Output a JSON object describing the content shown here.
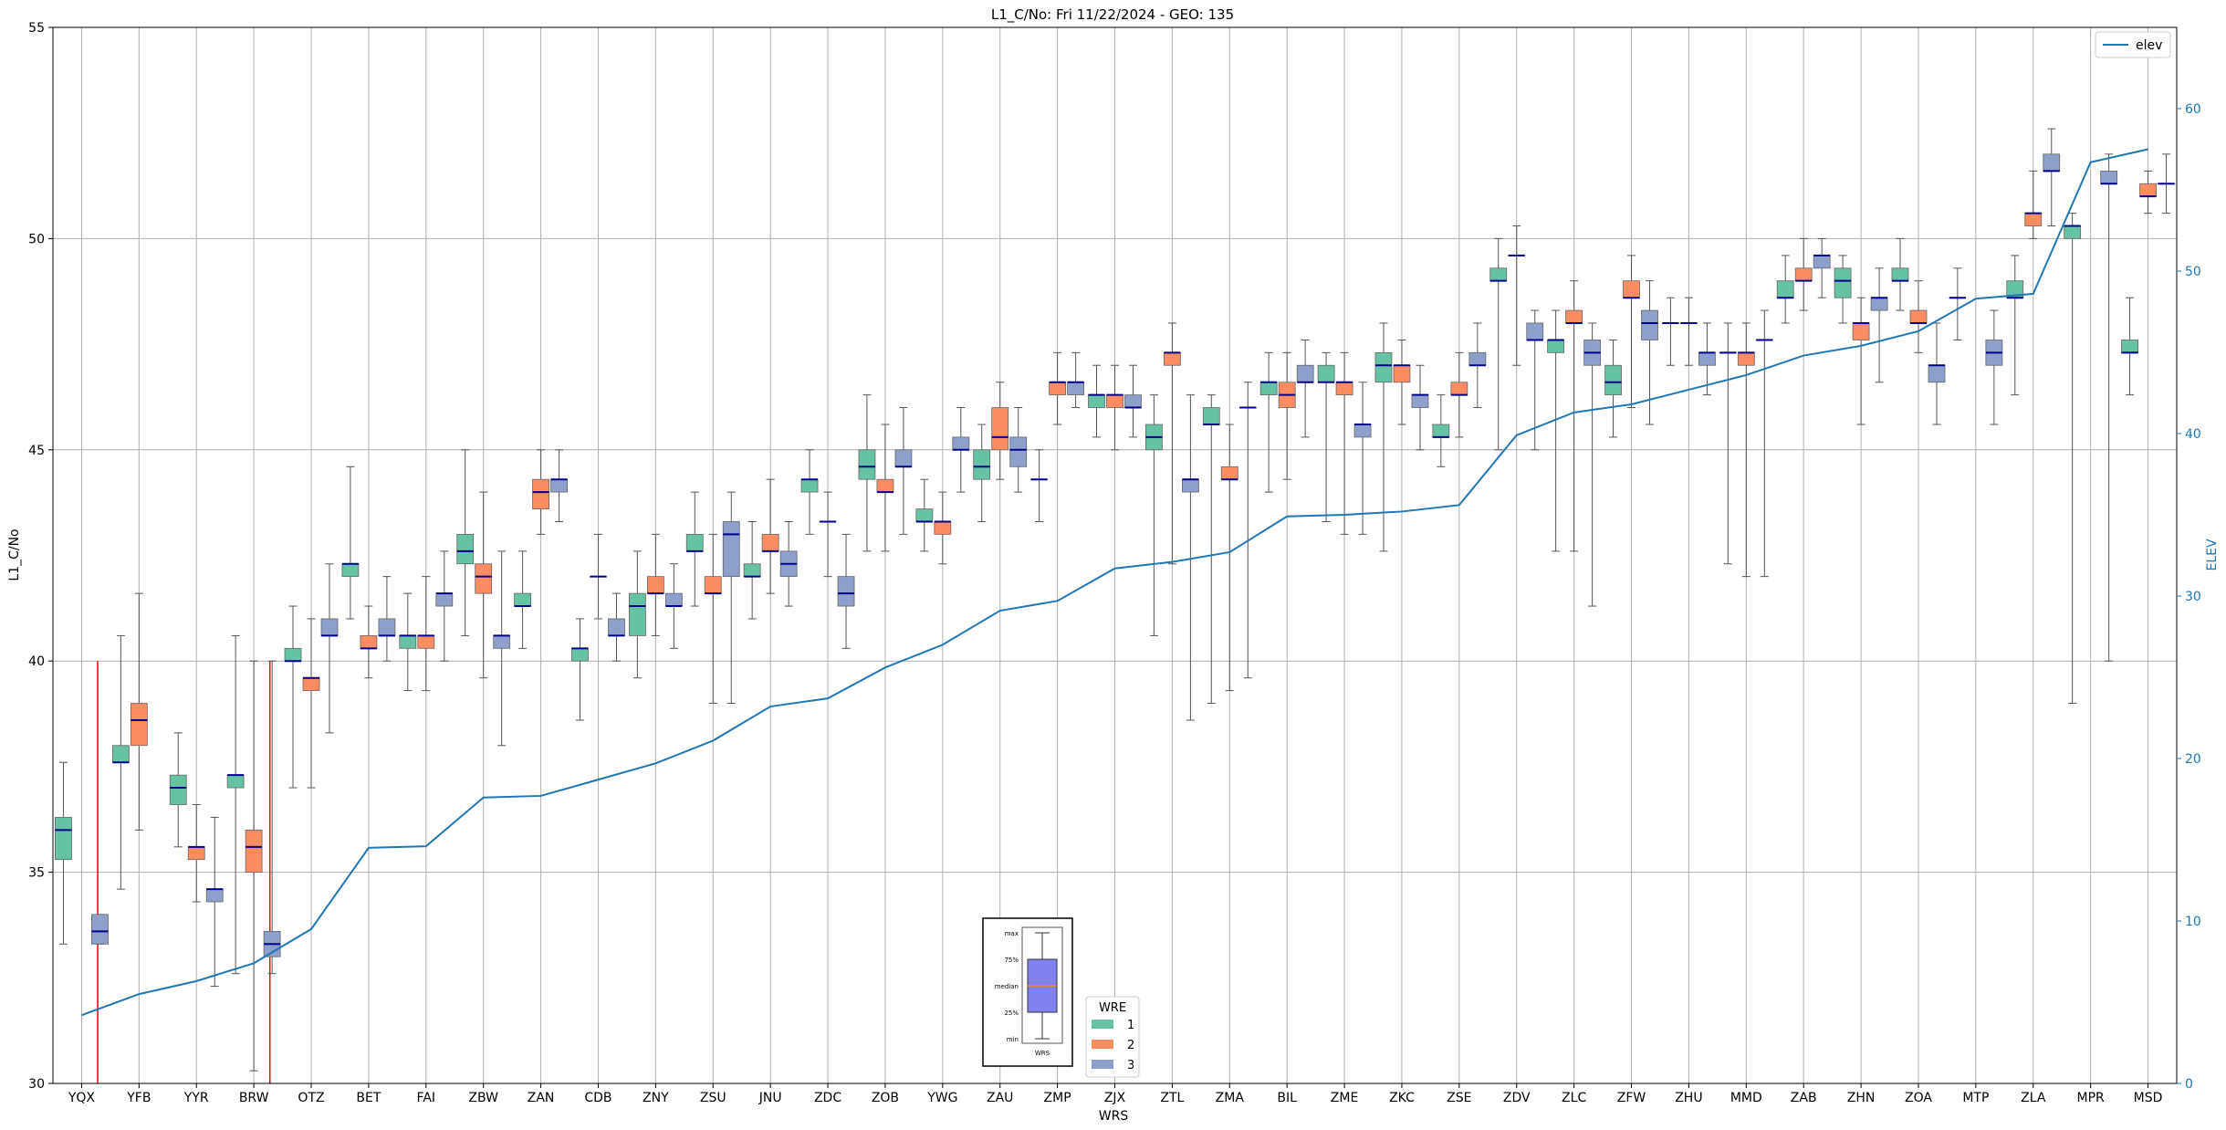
{
  "chart_data": {
    "type": "box",
    "title": "L1_C/No: Fri 11/22/2024 - GEO: 135",
    "xlabel": "WRS",
    "ylabel": "L1_C/No",
    "y2label": "ELEV",
    "ylim": [
      30,
      55
    ],
    "y2lim": [
      0,
      65
    ],
    "yticks": [
      30,
      35,
      40,
      45,
      50,
      55
    ],
    "y2ticks": [
      0,
      10,
      20,
      30,
      40,
      50,
      60
    ],
    "grid": true,
    "categories": [
      "YQX",
      "YFB",
      "YYR",
      "BRW",
      "OTZ",
      "BET",
      "FAI",
      "ZBW",
      "ZAN",
      "CDB",
      "ZNY",
      "ZSU",
      "JNU",
      "ZDC",
      "ZOB",
      "YWG",
      "ZAU",
      "ZMP",
      "ZJX",
      "ZTL",
      "ZMA",
      "BIL",
      "ZME",
      "ZKC",
      "ZSE",
      "ZDV",
      "ZLC",
      "ZFW",
      "ZHU",
      "MMD",
      "ZAB",
      "ZHN",
      "ZOA",
      "MTP",
      "ZLA",
      "MPR",
      "MSD"
    ],
    "elev_series": {
      "name": "elev",
      "values": [
        4.2,
        5.5,
        6.3,
        7.4,
        9.5,
        14.5,
        14.6,
        17.6,
        17.7,
        18.7,
        19.7,
        21.1,
        23.2,
        23.7,
        25.6,
        27.0,
        29.1,
        29.7,
        31.7,
        32.1,
        32.7,
        34.9,
        35.0,
        35.2,
        35.6,
        39.9,
        41.3,
        41.8,
        42.7,
        43.6,
        44.8,
        45.4,
        46.3,
        48.3,
        48.6,
        56.7,
        57.5
      ]
    },
    "wre_colors": {
      "1": "#66c2a5",
      "2": "#fc8d62",
      "3": "#8da0cb"
    },
    "boxes": [
      {
        "cat": "YQX",
        "wre": 1,
        "min": 33.3,
        "q1": 35.3,
        "median": 36.0,
        "q3": 36.3,
        "max": 37.6
      },
      {
        "cat": "YQX",
        "wre": 3,
        "min": 33.3,
        "q1": 33.3,
        "median": 33.6,
        "q3": 34.0,
        "max": 34.0
      },
      {
        "cat": "YFB",
        "wre": 1,
        "min": 34.6,
        "q1": 37.6,
        "median": 37.6,
        "q3": 38.0,
        "max": 40.6
      },
      {
        "cat": "YFB",
        "wre": 2,
        "min": 36.0,
        "q1": 38.0,
        "median": 38.6,
        "q3": 39.0,
        "max": 41.6
      },
      {
        "cat": "YYR",
        "wre": 1,
        "min": 35.6,
        "q1": 36.6,
        "median": 37.0,
        "q3": 37.3,
        "max": 38.3
      },
      {
        "cat": "YYR",
        "wre": 2,
        "min": 34.3,
        "q1": 35.3,
        "median": 35.6,
        "q3": 35.6,
        "max": 36.6
      },
      {
        "cat": "YYR",
        "wre": 3,
        "min": 32.3,
        "q1": 34.3,
        "median": 34.6,
        "q3": 34.6,
        "max": 36.3
      },
      {
        "cat": "BRW",
        "wre": 1,
        "min": 32.6,
        "q1": 37.0,
        "median": 37.3,
        "q3": 37.3,
        "max": 40.6
      },
      {
        "cat": "BRW",
        "wre": 2,
        "min": 30.3,
        "q1": 35.0,
        "median": 35.6,
        "q3": 36.0,
        "max": 40.0
      },
      {
        "cat": "BRW",
        "wre": 3,
        "min": 32.6,
        "q1": 33.0,
        "median": 33.3,
        "q3": 33.6,
        "max": 40.0
      },
      {
        "cat": "OTZ",
        "wre": 1,
        "min": 37.0,
        "q1": 40.0,
        "median": 40.0,
        "q3": 40.3,
        "max": 41.3
      },
      {
        "cat": "OTZ",
        "wre": 2,
        "min": 37.0,
        "q1": 39.3,
        "median": 39.6,
        "q3": 39.6,
        "max": 41.0
      },
      {
        "cat": "OTZ",
        "wre": 3,
        "min": 38.3,
        "q1": 40.6,
        "median": 40.6,
        "q3": 41.0,
        "max": 42.3
      },
      {
        "cat": "BET",
        "wre": 1,
        "min": 41.0,
        "q1": 42.0,
        "median": 42.3,
        "q3": 42.3,
        "max": 44.6
      },
      {
        "cat": "BET",
        "wre": 2,
        "min": 39.6,
        "q1": 40.3,
        "median": 40.3,
        "q3": 40.6,
        "max": 41.3
      },
      {
        "cat": "BET",
        "wre": 3,
        "min": 40.0,
        "q1": 40.6,
        "median": 40.6,
        "q3": 41.0,
        "max": 42.0
      },
      {
        "cat": "FAI",
        "wre": 1,
        "min": 39.3,
        "q1": 40.3,
        "median": 40.6,
        "q3": 40.6,
        "max": 41.6
      },
      {
        "cat": "FAI",
        "wre": 2,
        "min": 39.3,
        "q1": 40.3,
        "median": 40.6,
        "q3": 40.6,
        "max": 42.0
      },
      {
        "cat": "FAI",
        "wre": 3,
        "min": 40.0,
        "q1": 41.3,
        "median": 41.6,
        "q3": 41.6,
        "max": 42.6
      },
      {
        "cat": "ZBW",
        "wre": 1,
        "min": 40.6,
        "q1": 42.3,
        "median": 42.6,
        "q3": 43.0,
        "max": 45.0
      },
      {
        "cat": "ZBW",
        "wre": 2,
        "min": 39.6,
        "q1": 41.6,
        "median": 42.0,
        "q3": 42.3,
        "max": 44.0
      },
      {
        "cat": "ZBW",
        "wre": 3,
        "min": 38.0,
        "q1": 40.3,
        "median": 40.6,
        "q3": 40.6,
        "max": 42.6
      },
      {
        "cat": "ZAN",
        "wre": 1,
        "min": 40.3,
        "q1": 41.3,
        "median": 41.3,
        "q3": 41.6,
        "max": 42.6
      },
      {
        "cat": "ZAN",
        "wre": 2,
        "min": 43.0,
        "q1": 43.6,
        "median": 44.0,
        "q3": 44.3,
        "max": 45.0
      },
      {
        "cat": "ZAN",
        "wre": 3,
        "min": 43.3,
        "q1": 44.0,
        "median": 44.3,
        "q3": 44.3,
        "max": 45.0
      },
      {
        "cat": "CDB",
        "wre": 1,
        "min": 38.6,
        "q1": 40.0,
        "median": 40.3,
        "q3": 40.3,
        "max": 41.0
      },
      {
        "cat": "CDB",
        "wre": 2,
        "min": 41.0,
        "q1": 42.0,
        "median": 42.0,
        "q3": 42.0,
        "max": 43.0
      },
      {
        "cat": "CDB",
        "wre": 3,
        "min": 40.0,
        "q1": 40.6,
        "median": 40.6,
        "q3": 41.0,
        "max": 41.6
      },
      {
        "cat": "ZNY",
        "wre": 1,
        "min": 39.6,
        "q1": 40.6,
        "median": 41.3,
        "q3": 41.6,
        "max": 42.6
      },
      {
        "cat": "ZNY",
        "wre": 2,
        "min": 40.6,
        "q1": 41.6,
        "median": 41.6,
        "q3": 42.0,
        "max": 43.0
      },
      {
        "cat": "ZNY",
        "wre": 3,
        "min": 40.3,
        "q1": 41.3,
        "median": 41.3,
        "q3": 41.6,
        "max": 42.3
      },
      {
        "cat": "ZSU",
        "wre": 1,
        "min": 41.3,
        "q1": 42.6,
        "median": 42.6,
        "q3": 43.0,
        "max": 44.0
      },
      {
        "cat": "ZSU",
        "wre": 2,
        "min": 39.0,
        "q1": 41.6,
        "median": 41.6,
        "q3": 42.0,
        "max": 43.0
      },
      {
        "cat": "ZSU",
        "wre": 3,
        "min": 39.0,
        "q1": 42.0,
        "median": 43.0,
        "q3": 43.3,
        "max": 44.0
      },
      {
        "cat": "JNU",
        "wre": 1,
        "min": 41.0,
        "q1": 42.0,
        "median": 42.0,
        "q3": 42.3,
        "max": 43.3
      },
      {
        "cat": "JNU",
        "wre": 2,
        "min": 41.6,
        "q1": 42.6,
        "median": 42.6,
        "q3": 43.0,
        "max": 44.3
      },
      {
        "cat": "JNU",
        "wre": 3,
        "min": 41.3,
        "q1": 42.0,
        "median": 42.3,
        "q3": 42.6,
        "max": 43.3
      },
      {
        "cat": "ZDC",
        "wre": 1,
        "min": 43.0,
        "q1": 44.0,
        "median": 44.3,
        "q3": 44.3,
        "max": 45.0
      },
      {
        "cat": "ZDC",
        "wre": 2,
        "min": 42.0,
        "q1": 43.3,
        "median": 43.3,
        "q3": 43.3,
        "max": 44.0
      },
      {
        "cat": "ZDC",
        "wre": 3,
        "min": 40.3,
        "q1": 41.3,
        "median": 41.6,
        "q3": 42.0,
        "max": 43.0
      },
      {
        "cat": "ZOB",
        "wre": 1,
        "min": 42.6,
        "q1": 44.3,
        "median": 44.6,
        "q3": 45.0,
        "max": 46.3
      },
      {
        "cat": "ZOB",
        "wre": 2,
        "min": 42.6,
        "q1": 44.0,
        "median": 44.0,
        "q3": 44.3,
        "max": 45.6
      },
      {
        "cat": "ZOB",
        "wre": 3,
        "min": 43.0,
        "q1": 44.6,
        "median": 44.6,
        "q3": 45.0,
        "max": 46.0
      },
      {
        "cat": "YWG",
        "wre": 1,
        "min": 42.6,
        "q1": 43.3,
        "median": 43.3,
        "q3": 43.6,
        "max": 44.3
      },
      {
        "cat": "YWG",
        "wre": 2,
        "min": 42.3,
        "q1": 43.0,
        "median": 43.3,
        "q3": 43.3,
        "max": 44.0
      },
      {
        "cat": "YWG",
        "wre": 3,
        "min": 44.0,
        "q1": 45.0,
        "median": 45.0,
        "q3": 45.3,
        "max": 46.0
      },
      {
        "cat": "ZAU",
        "wre": 1,
        "min": 43.3,
        "q1": 44.3,
        "median": 44.6,
        "q3": 45.0,
        "max": 45.6
      },
      {
        "cat": "ZAU",
        "wre": 2,
        "min": 44.3,
        "q1": 45.0,
        "median": 45.3,
        "q3": 46.0,
        "max": 46.6
      },
      {
        "cat": "ZAU",
        "wre": 3,
        "min": 44.0,
        "q1": 44.6,
        "median": 45.0,
        "q3": 45.3,
        "max": 46.0
      },
      {
        "cat": "ZMP",
        "wre": 1,
        "min": 43.3,
        "q1": 44.3,
        "median": 44.3,
        "q3": 44.3,
        "max": 45.0
      },
      {
        "cat": "ZMP",
        "wre": 2,
        "min": 45.6,
        "q1": 46.3,
        "median": 46.6,
        "q3": 46.6,
        "max": 47.3
      },
      {
        "cat": "ZMP",
        "wre": 3,
        "min": 46.0,
        "q1": 46.3,
        "median": 46.6,
        "q3": 46.6,
        "max": 47.3
      },
      {
        "cat": "ZJX",
        "wre": 1,
        "min": 45.3,
        "q1": 46.0,
        "median": 46.3,
        "q3": 46.3,
        "max": 47.0
      },
      {
        "cat": "ZJX",
        "wre": 2,
        "min": 45.0,
        "q1": 46.0,
        "median": 46.3,
        "q3": 46.3,
        "max": 47.0
      },
      {
        "cat": "ZJX",
        "wre": 3,
        "min": 45.3,
        "q1": 46.0,
        "median": 46.0,
        "q3": 46.3,
        "max": 47.0
      },
      {
        "cat": "ZTL",
        "wre": 1,
        "min": 40.6,
        "q1": 45.0,
        "median": 45.3,
        "q3": 45.6,
        "max": 46.3
      },
      {
        "cat": "ZTL",
        "wre": 2,
        "min": 42.3,
        "q1": 47.0,
        "median": 47.3,
        "q3": 47.3,
        "max": 48.0
      },
      {
        "cat": "ZTL",
        "wre": 3,
        "min": 38.6,
        "q1": 44.0,
        "median": 44.3,
        "q3": 44.3,
        "max": 46.3
      },
      {
        "cat": "ZMA",
        "wre": 1,
        "min": 39.0,
        "q1": 45.6,
        "median": 45.6,
        "q3": 46.0,
        "max": 46.3
      },
      {
        "cat": "ZMA",
        "wre": 2,
        "min": 39.3,
        "q1": 44.3,
        "median": 44.3,
        "q3": 44.6,
        "max": 45.6
      },
      {
        "cat": "ZMA",
        "wre": 3,
        "min": 39.6,
        "q1": 46.0,
        "median": 46.0,
        "q3": 46.0,
        "max": 46.6
      },
      {
        "cat": "BIL",
        "wre": 1,
        "min": 44.0,
        "q1": 46.3,
        "median": 46.6,
        "q3": 46.6,
        "max": 47.3
      },
      {
        "cat": "BIL",
        "wre": 2,
        "min": 44.3,
        "q1": 46.0,
        "median": 46.3,
        "q3": 46.6,
        "max": 47.3
      },
      {
        "cat": "BIL",
        "wre": 3,
        "min": 45.3,
        "q1": 46.6,
        "median": 46.6,
        "q3": 47.0,
        "max": 47.6
      },
      {
        "cat": "ZME",
        "wre": 1,
        "min": 43.3,
        "q1": 46.6,
        "median": 46.6,
        "q3": 47.0,
        "max": 47.3
      },
      {
        "cat": "ZME",
        "wre": 2,
        "min": 43.0,
        "q1": 46.3,
        "median": 46.6,
        "q3": 46.6,
        "max": 47.3
      },
      {
        "cat": "ZME",
        "wre": 3,
        "min": 43.0,
        "q1": 45.3,
        "median": 45.6,
        "q3": 45.6,
        "max": 46.6
      },
      {
        "cat": "ZKC",
        "wre": 1,
        "min": 42.6,
        "q1": 46.6,
        "median": 47.0,
        "q3": 47.3,
        "max": 48.0
      },
      {
        "cat": "ZKC",
        "wre": 2,
        "min": 45.6,
        "q1": 46.6,
        "median": 47.0,
        "q3": 47.0,
        "max": 47.6
      },
      {
        "cat": "ZKC",
        "wre": 3,
        "min": 45.0,
        "q1": 46.0,
        "median": 46.3,
        "q3": 46.3,
        "max": 47.0
      },
      {
        "cat": "ZSE",
        "wre": 1,
        "min": 44.6,
        "q1": 45.3,
        "median": 45.3,
        "q3": 45.6,
        "max": 46.3
      },
      {
        "cat": "ZSE",
        "wre": 2,
        "min": 45.3,
        "q1": 46.3,
        "median": 46.3,
        "q3": 46.6,
        "max": 47.3
      },
      {
        "cat": "ZSE",
        "wre": 3,
        "min": 46.0,
        "q1": 47.0,
        "median": 47.0,
        "q3": 47.3,
        "max": 48.0
      },
      {
        "cat": "ZDV",
        "wre": 1,
        "min": 45.0,
        "q1": 49.0,
        "median": 49.0,
        "q3": 49.3,
        "max": 50.0
      },
      {
        "cat": "ZDV",
        "wre": 2,
        "min": 47.0,
        "q1": 49.6,
        "median": 49.6,
        "q3": 49.6,
        "max": 50.3
      },
      {
        "cat": "ZDV",
        "wre": 3,
        "min": 45.0,
        "q1": 47.6,
        "median": 47.6,
        "q3": 48.0,
        "max": 48.3
      },
      {
        "cat": "ZLC",
        "wre": 1,
        "min": 42.6,
        "q1": 47.3,
        "median": 47.6,
        "q3": 47.6,
        "max": 48.3
      },
      {
        "cat": "ZLC",
        "wre": 2,
        "min": 42.6,
        "q1": 48.0,
        "median": 48.0,
        "q3": 48.3,
        "max": 49.0
      },
      {
        "cat": "ZLC",
        "wre": 3,
        "min": 41.3,
        "q1": 47.0,
        "median": 47.3,
        "q3": 47.6,
        "max": 48.0
      },
      {
        "cat": "ZFW",
        "wre": 1,
        "min": 45.3,
        "q1": 46.3,
        "median": 46.6,
        "q3": 47.0,
        "max": 47.6
      },
      {
        "cat": "ZFW",
        "wre": 2,
        "min": 46.0,
        "q1": 48.6,
        "median": 48.6,
        "q3": 49.0,
        "max": 49.6
      },
      {
        "cat": "ZFW",
        "wre": 3,
        "min": 45.6,
        "q1": 47.6,
        "median": 48.0,
        "q3": 48.3,
        "max": 49.0
      },
      {
        "cat": "ZHU",
        "wre": 1,
        "min": 47.0,
        "q1": 48.0,
        "median": 48.0,
        "q3": 48.0,
        "max": 48.6
      },
      {
        "cat": "ZHU",
        "wre": 2,
        "min": 47.0,
        "q1": 48.0,
        "median": 48.0,
        "q3": 48.0,
        "max": 48.6
      },
      {
        "cat": "ZHU",
        "wre": 3,
        "min": 46.3,
        "q1": 47.0,
        "median": 47.3,
        "q3": 47.3,
        "max": 48.0
      },
      {
        "cat": "MMD",
        "wre": 1,
        "min": 42.3,
        "q1": 47.3,
        "median": 47.3,
        "q3": 47.3,
        "max": 48.0
      },
      {
        "cat": "MMD",
        "wre": 2,
        "min": 42.0,
        "q1": 47.0,
        "median": 47.3,
        "q3": 47.3,
        "max": 48.0
      },
      {
        "cat": "MMD",
        "wre": 3,
        "min": 42.0,
        "q1": 47.6,
        "median": 47.6,
        "q3": 47.6,
        "max": 48.3
      },
      {
        "cat": "ZAB",
        "wre": 1,
        "min": 48.0,
        "q1": 48.6,
        "median": 48.6,
        "q3": 49.0,
        "max": 49.6
      },
      {
        "cat": "ZAB",
        "wre": 2,
        "min": 48.3,
        "q1": 49.0,
        "median": 49.0,
        "q3": 49.3,
        "max": 50.0
      },
      {
        "cat": "ZAB",
        "wre": 3,
        "min": 48.6,
        "q1": 49.3,
        "median": 49.6,
        "q3": 49.6,
        "max": 50.0
      },
      {
        "cat": "ZHN",
        "wre": 1,
        "min": 48.0,
        "q1": 48.6,
        "median": 49.0,
        "q3": 49.3,
        "max": 49.6
      },
      {
        "cat": "ZHN",
        "wre": 2,
        "min": 45.6,
        "q1": 47.6,
        "median": 48.0,
        "q3": 48.0,
        "max": 48.6
      },
      {
        "cat": "ZHN",
        "wre": 3,
        "min": 46.6,
        "q1": 48.3,
        "median": 48.6,
        "q3": 48.6,
        "max": 49.3
      },
      {
        "cat": "ZOA",
        "wre": 1,
        "min": 48.3,
        "q1": 49.0,
        "median": 49.0,
        "q3": 49.3,
        "max": 50.0
      },
      {
        "cat": "ZOA",
        "wre": 2,
        "min": 47.3,
        "q1": 48.0,
        "median": 48.0,
        "q3": 48.3,
        "max": 49.0
      },
      {
        "cat": "ZOA",
        "wre": 3,
        "min": 45.6,
        "q1": 46.6,
        "median": 47.0,
        "q3": 47.0,
        "max": 48.0
      },
      {
        "cat": "MTP",
        "wre": 1,
        "min": 47.6,
        "q1": 48.6,
        "median": 48.6,
        "q3": 48.6,
        "max": 49.3
      },
      {
        "cat": "MTP",
        "wre": 3,
        "min": 45.6,
        "q1": 47.0,
        "median": 47.3,
        "q3": 47.6,
        "max": 48.3
      },
      {
        "cat": "ZLA",
        "wre": 1,
        "min": 46.3,
        "q1": 48.6,
        "median": 48.6,
        "q3": 49.0,
        "max": 49.6
      },
      {
        "cat": "ZLA",
        "wre": 2,
        "min": 50.0,
        "q1": 50.3,
        "median": 50.6,
        "q3": 50.6,
        "max": 51.6
      },
      {
        "cat": "ZLA",
        "wre": 3,
        "min": 50.3,
        "q1": 51.6,
        "median": 51.6,
        "q3": 52.0,
        "max": 52.6
      },
      {
        "cat": "MPR",
        "wre": 1,
        "min": 39.0,
        "q1": 50.0,
        "median": 50.3,
        "q3": 50.3,
        "max": 50.6
      },
      {
        "cat": "MPR",
        "wre": 3,
        "min": 40.0,
        "q1": 51.3,
        "median": 51.3,
        "q3": 51.6,
        "max": 52.0
      },
      {
        "cat": "MSD",
        "wre": 1,
        "min": 46.3,
        "q1": 47.3,
        "median": 47.3,
        "q3": 47.6,
        "max": 48.6
      },
      {
        "cat": "MSD",
        "wre": 2,
        "min": 50.6,
        "q1": 51.0,
        "median": 51.0,
        "q3": 51.3,
        "max": 51.6
      },
      {
        "cat": "MSD",
        "wre": 3,
        "min": 50.6,
        "q1": 51.3,
        "median": 51.3,
        "q3": 51.3,
        "max": 52.0
      }
    ],
    "red_markers": [
      "YQX",
      "BRW"
    ],
    "red_marker_range": [
      30,
      40
    ],
    "legend_elev": {
      "label": "elev",
      "position": "top-right"
    },
    "legend_wre": {
      "title": "WRE",
      "labels": [
        "1",
        "2",
        "3"
      ]
    },
    "inset_key": {
      "labels": [
        "max",
        "75%",
        "median",
        "25%",
        "min"
      ],
      "xlabel": "WRS"
    },
    "colors": {
      "elev_line": "#1f77b4",
      "median": "#00008b",
      "whisker": "#555555",
      "grid": "#b0b0b0",
      "red_marker": "#ff0000"
    }
  }
}
